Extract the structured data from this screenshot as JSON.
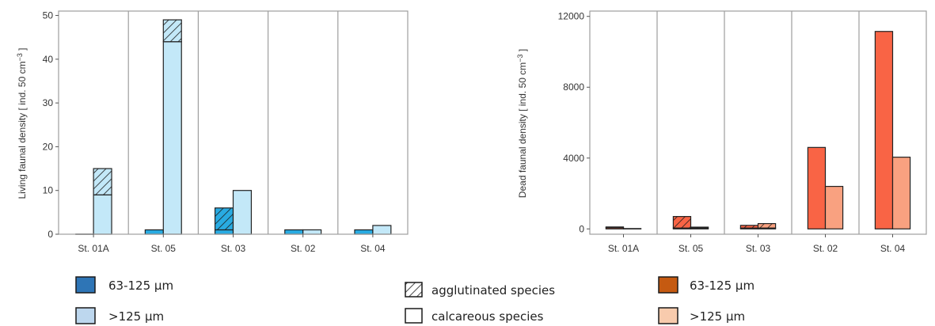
{
  "chart_data": [
    {
      "type": "bar",
      "panel": "living",
      "ylabel_parts": [
        "Living faunal density [ ind. 50 cm",
        "−3",
        " ]"
      ],
      "categories": [
        "St. 01A",
        "St. 05",
        "St. 03",
        "St. 02",
        "St. 04"
      ],
      "ylim": [
        0,
        51
      ],
      "yticks": [
        0,
        10,
        20,
        30,
        40,
        50
      ],
      "grid": false,
      "series": [
        {
          "fraction": "63-125 µm",
          "calcareous": [
            0,
            1,
            1,
            1,
            1
          ],
          "agglutinated": [
            0,
            0,
            5,
            0,
            0
          ]
        },
        {
          "fraction": ">125 µm",
          "calcareous": [
            9,
            44,
            10,
            1,
            2
          ],
          "agglutinated": [
            6,
            5,
            0,
            0,
            0
          ]
        }
      ]
    },
    {
      "type": "bar",
      "panel": "dead",
      "ylabel_parts": [
        "Dead faunal density [ ind. 50 cm",
        "−3",
        " ]"
      ],
      "categories": [
        "St. 01A",
        "St. 05",
        "St. 03",
        "St. 02",
        "St. 04"
      ],
      "ylim": [
        -300,
        12300
      ],
      "yticks": [
        0,
        4000,
        8000,
        12000
      ],
      "grid": false,
      "series": [
        {
          "fraction": "63-125 µm",
          "calcareous": [
            70,
            50,
            50,
            4600,
            11150
          ],
          "agglutinated": [
            40,
            650,
            150,
            0,
            0
          ]
        },
        {
          "fraction": ">125 µm",
          "calcareous": [
            20,
            50,
            50,
            2400,
            4050
          ],
          "agglutinated": [
            0,
            50,
            250,
            0,
            0
          ]
        }
      ]
    }
  ],
  "legend": [
    {
      "label": "63-125 µm",
      "swatch": "living-small"
    },
    {
      "label": ">125 µm",
      "swatch": "living-large"
    },
    {
      "label": "agglutinated species",
      "swatch": "hatch"
    },
    {
      "label": "calcareous species",
      "swatch": "plain"
    },
    {
      "label": "63-125 µm",
      "swatch": "dead-small"
    },
    {
      "label": ">125 µm",
      "swatch": "dead-large"
    }
  ],
  "colors": {
    "living_small": "#29abe2",
    "living_large": "#c3e8f8",
    "dead_small": "#f96445",
    "dead_large": "#f9a180",
    "legend_living_small": "#2e75b6",
    "legend_living_large": "#bdd7ee",
    "legend_dead_small": "#c55a11",
    "legend_dead_large": "#f8cbad",
    "axis": "#9e9e9e",
    "separator": "#9e9e9e",
    "bar_stroke": "#222222"
  }
}
